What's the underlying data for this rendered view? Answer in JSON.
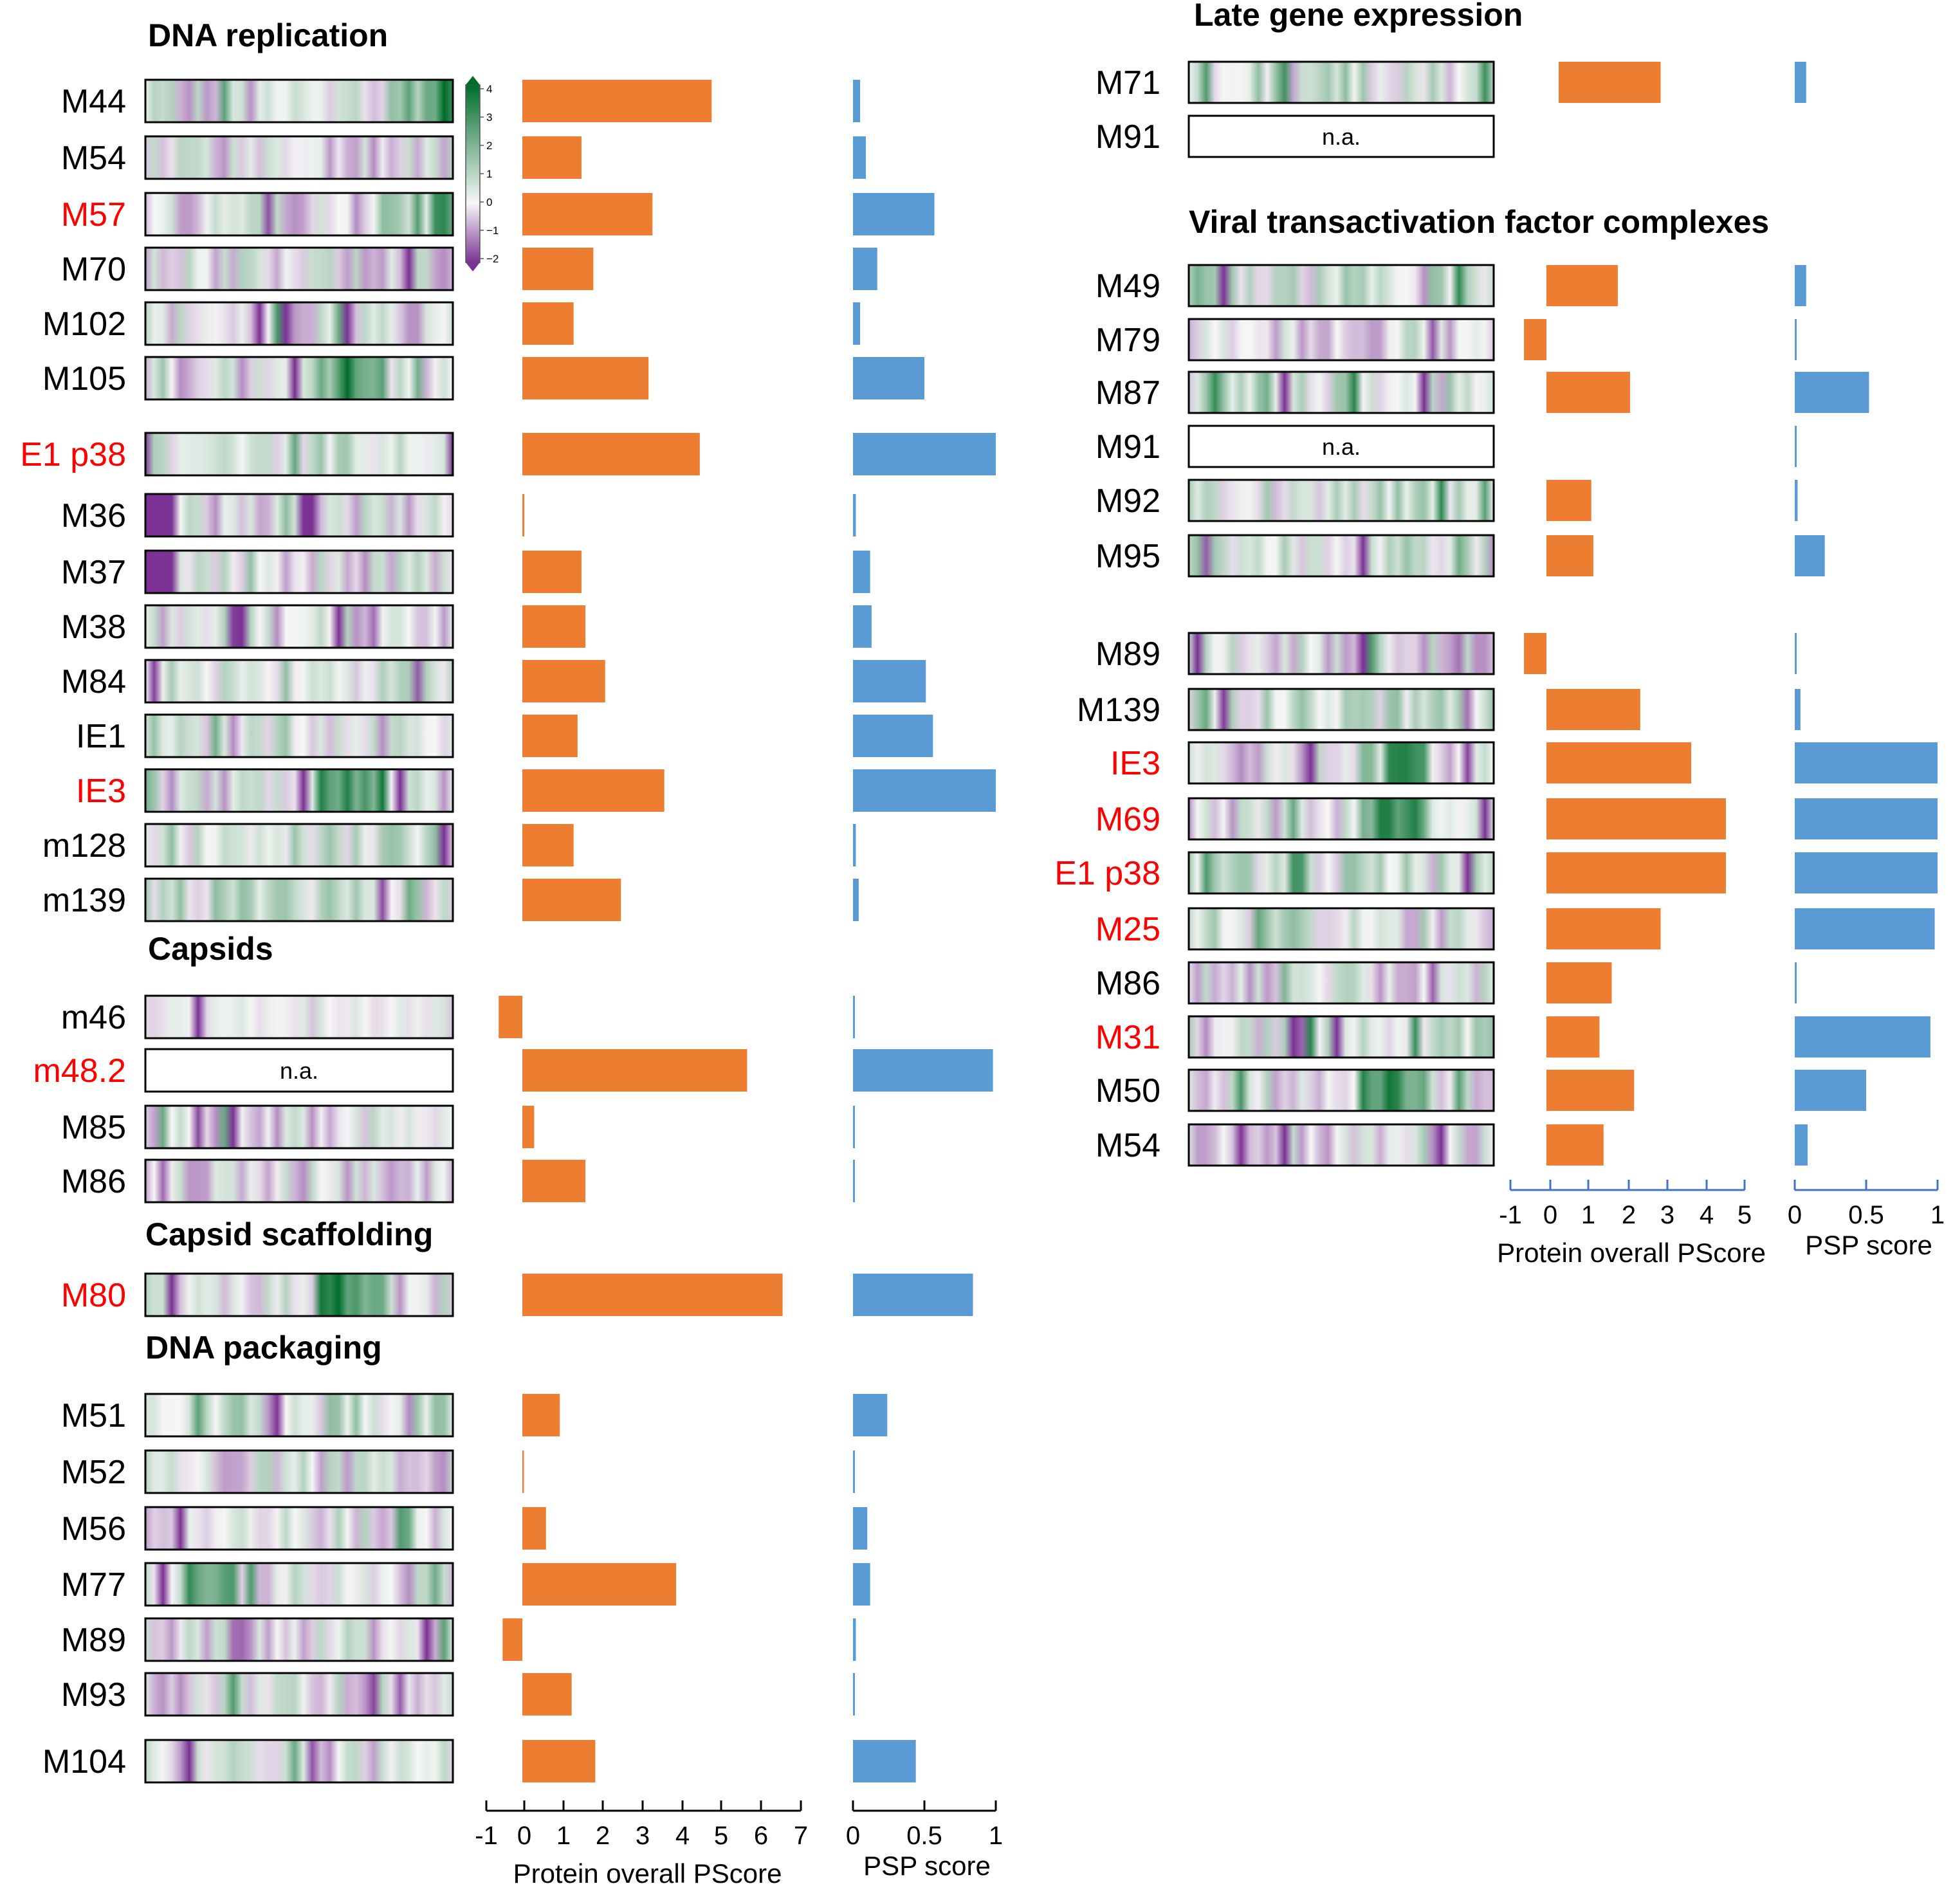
{
  "colors": {
    "pscore": "#ed7d31",
    "psp": "#5b9bd5",
    "highlight": "#ff0000",
    "normal": "#000000",
    "axis_left": "#000000",
    "axis_right": "#4472c4",
    "heat_low": "#7b3294",
    "heat_mid": "#f7f7f7",
    "heat_high": "#006d2c"
  },
  "colorbar": {
    "ticks": [
      "4",
      "3",
      "2",
      "1",
      "0",
      "−1",
      "−2"
    ]
  },
  "axes": {
    "left": {
      "pscore_ticks": [
        "-1",
        "0",
        "1",
        "2",
        "3",
        "4",
        "5",
        "6",
        "7"
      ],
      "psp_ticks": [
        "0",
        "0.5",
        "1"
      ],
      "pscore_label": "Protein overall  PScore",
      "psp_label": "PSP score"
    },
    "right": {
      "pscore_ticks": [
        "-1",
        "0",
        "1",
        "2",
        "3",
        "4",
        "5"
      ],
      "psp_ticks": [
        "0",
        "0.5",
        "1"
      ],
      "pscore_label": "Protein overall  PScore",
      "psp_label": "PSP score"
    }
  },
  "chart_data": [
    {
      "type": "bar",
      "panel": "left",
      "xlabel_pscore": "Protein overall  PScore",
      "xlabel_psp": "PSP score",
      "pscore_xlim": [
        -1,
        7
      ],
      "psp_xlim": [
        0,
        1
      ],
      "groups": [
        {
          "title": "DNA replication",
          "rows": [
            {
              "label": "M44",
              "highlight": false,
              "na": false,
              "pscore": 4.8,
              "psp": 0.05,
              "heat_pattern": "end_high"
            },
            {
              "label": "M54",
              "highlight": false,
              "na": false,
              "pscore": 1.5,
              "psp": 0.09,
              "heat_pattern": "mixed"
            },
            {
              "label": "M57",
              "highlight": true,
              "na": false,
              "pscore": 3.3,
              "psp": 0.57,
              "heat_pattern": "end_high"
            },
            {
              "label": "M70",
              "highlight": false,
              "na": false,
              "pscore": 1.8,
              "psp": 0.17,
              "heat_pattern": "mixed"
            },
            {
              "label": "M102",
              "highlight": false,
              "na": false,
              "pscore": 1.3,
              "psp": 0.05,
              "heat_pattern": "mixed"
            },
            {
              "label": "M105",
              "highlight": false,
              "na": false,
              "pscore": 3.2,
              "psp": 0.5,
              "heat_pattern": "mid_high"
            },
            {
              "label": "E1 p38",
              "highlight": true,
              "na": false,
              "pscore": 4.5,
              "psp": 1.0,
              "heat_pattern": "green"
            },
            {
              "label": "M36",
              "highlight": false,
              "na": false,
              "pscore": 0.05,
              "psp": 0.02,
              "heat_pattern": "start_low"
            },
            {
              "label": "M37",
              "highlight": false,
              "na": false,
              "pscore": 1.5,
              "psp": 0.12,
              "heat_pattern": "start_low"
            },
            {
              "label": "M38",
              "highlight": false,
              "na": false,
              "pscore": 1.6,
              "psp": 0.13,
              "heat_pattern": "mixed"
            },
            {
              "label": "M84",
              "highlight": false,
              "na": false,
              "pscore": 2.1,
              "psp": 0.51,
              "heat_pattern": "green"
            },
            {
              "label": "IE1",
              "highlight": false,
              "na": false,
              "pscore": 1.4,
              "psp": 0.56,
              "heat_pattern": "mixed"
            },
            {
              "label": "IE3",
              "highlight": true,
              "na": false,
              "pscore": 3.6,
              "psp": 1.0,
              "heat_pattern": "mid_high"
            },
            {
              "label": "m128",
              "highlight": false,
              "na": false,
              "pscore": 1.3,
              "psp": 0.02,
              "heat_pattern": "green"
            },
            {
              "label": "m139",
              "highlight": false,
              "na": false,
              "pscore": 2.5,
              "psp": 0.04,
              "heat_pattern": "green"
            }
          ]
        },
        {
          "title": "Capsids",
          "rows": [
            {
              "label": "m46",
              "highlight": false,
              "na": false,
              "pscore": -0.6,
              "psp": 0.01,
              "heat_pattern": "light"
            },
            {
              "label": "m48.2",
              "highlight": true,
              "na": true,
              "na_text": "n.a.",
              "pscore": 5.7,
              "psp": 0.98,
              "heat_pattern": "none"
            },
            {
              "label": "M85",
              "highlight": false,
              "na": false,
              "pscore": 0.3,
              "psp": 0.01,
              "heat_pattern": "mixed"
            },
            {
              "label": "M86",
              "highlight": false,
              "na": false,
              "pscore": 1.6,
              "psp": 0.01,
              "heat_pattern": "mixed"
            }
          ]
        },
        {
          "title": "Capsid scaffolding",
          "rows": [
            {
              "label": "M80",
              "highlight": true,
              "na": false,
              "pscore": 6.6,
              "psp": 0.84,
              "heat_pattern": "mid_high"
            }
          ]
        },
        {
          "title": "DNA packaging",
          "rows": [
            {
              "label": "M51",
              "highlight": false,
              "na": false,
              "pscore": 0.95,
              "psp": 0.24,
              "heat_pattern": "green"
            },
            {
              "label": "M52",
              "highlight": false,
              "na": false,
              "pscore": 0.04,
              "psp": 0.01,
              "heat_pattern": "mixed"
            },
            {
              "label": "M56",
              "highlight": false,
              "na": false,
              "pscore": 0.6,
              "psp": 0.1,
              "heat_pattern": "mixed"
            },
            {
              "label": "M77",
              "highlight": false,
              "na": false,
              "pscore": 3.9,
              "psp": 0.12,
              "heat_pattern": "start_high"
            },
            {
              "label": "M89",
              "highlight": false,
              "na": false,
              "pscore": -0.5,
              "psp": 0.02,
              "heat_pattern": "mixed"
            },
            {
              "label": "M93",
              "highlight": false,
              "na": false,
              "pscore": 1.25,
              "psp": 0.01,
              "heat_pattern": "mixed"
            },
            {
              "label": "M104",
              "highlight": false,
              "na": false,
              "pscore": 1.85,
              "psp": 0.44,
              "heat_pattern": "mixed"
            }
          ]
        }
      ]
    },
    {
      "type": "bar",
      "panel": "right",
      "xlabel_pscore": "Protein overall  PScore",
      "xlabel_psp": "PSP score",
      "pscore_xlim": [
        -1,
        5
      ],
      "psp_xlim": [
        0,
        1
      ],
      "groups": [
        {
          "title": "Late gene expression",
          "rows": [
            {
              "label": "M71",
              "highlight": false,
              "na": false,
              "pscore": 2.8,
              "psp": 0.08,
              "pscore_start": 0.3,
              "heat_pattern": "green"
            },
            {
              "label": "M91",
              "highlight": false,
              "na": true,
              "na_text": "n.a.",
              "pscore": 0,
              "psp": 0,
              "heat_pattern": "none"
            }
          ]
        },
        {
          "title": "Viral transactivation factor complexes",
          "rows": [
            {
              "label": "M49",
              "highlight": false,
              "na": false,
              "pscore": 1.75,
              "psp": 0.08,
              "heat_pattern": "green"
            },
            {
              "label": "M79",
              "highlight": false,
              "na": false,
              "pscore": -0.55,
              "psp": 0.0,
              "heat_pattern": "mixed"
            },
            {
              "label": "M87",
              "highlight": false,
              "na": false,
              "pscore": 2.05,
              "psp": 0.52,
              "heat_pattern": "green"
            },
            {
              "label": "M91",
              "highlight": false,
              "na": true,
              "na_text": "n.a.",
              "pscore": 0,
              "psp": 0.01,
              "heat_pattern": "none"
            },
            {
              "label": "M92",
              "highlight": false,
              "na": false,
              "pscore": 1.1,
              "psp": 0.02,
              "heat_pattern": "green"
            },
            {
              "label": "M95",
              "highlight": false,
              "na": false,
              "pscore": 1.15,
              "psp": 0.21,
              "heat_pattern": "green"
            }
          ]
        },
        {
          "title": "",
          "rows": [
            {
              "label": "M89",
              "highlight": false,
              "na": false,
              "pscore": -0.55,
              "psp": 0.01,
              "heat_pattern": "mixed"
            },
            {
              "label": "M139",
              "highlight": false,
              "na": false,
              "pscore": 2.3,
              "psp": 0.04,
              "heat_pattern": "green"
            },
            {
              "label": "IE3",
              "highlight": true,
              "na": false,
              "pscore": 3.55,
              "psp": 1.0,
              "heat_pattern": "mid_high"
            },
            {
              "label": "M69",
              "highlight": true,
              "na": false,
              "pscore": 4.4,
              "psp": 1.0,
              "heat_pattern": "mid_high"
            },
            {
              "label": "E1 p38",
              "highlight": true,
              "na": false,
              "pscore": 4.4,
              "psp": 1.0,
              "heat_pattern": "green"
            },
            {
              "label": "M25",
              "highlight": true,
              "na": false,
              "pscore": 2.8,
              "psp": 0.98,
              "heat_pattern": "green"
            },
            {
              "label": "M86",
              "highlight": false,
              "na": false,
              "pscore": 1.6,
              "psp": 0.01,
              "heat_pattern": "mixed"
            },
            {
              "label": "M31",
              "highlight": true,
              "na": false,
              "pscore": 1.3,
              "psp": 0.95,
              "heat_pattern": "green"
            },
            {
              "label": "M50",
              "highlight": false,
              "na": false,
              "pscore": 2.15,
              "psp": 0.5,
              "heat_pattern": "mid_high"
            },
            {
              "label": "M54",
              "highlight": false,
              "na": false,
              "pscore": 1.4,
              "psp": 0.09,
              "heat_pattern": "mixed"
            }
          ]
        }
      ]
    }
  ]
}
